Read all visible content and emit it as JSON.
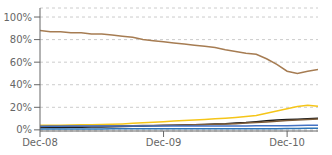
{
  "chart_data": {
    "type": "line",
    "x": [
      0,
      1,
      2,
      3,
      4,
      5,
      6,
      7,
      8,
      9,
      10,
      11,
      12,
      13,
      14,
      15,
      16,
      17,
      18,
      19,
      20,
      21,
      22,
      23,
      24,
      25,
      26,
      27
    ],
    "xlim": [
      0,
      27
    ],
    "xticks": [
      {
        "value": 0,
        "label": "Dec-08"
      },
      {
        "value": 12,
        "label": "Dec-09"
      },
      {
        "value": 24,
        "label": "Dec-10"
      }
    ],
    "ylim": [
      -0.01,
      1.08
    ],
    "yticks": [
      {
        "value": 0.0,
        "label": "0%"
      },
      {
        "value": 0.2,
        "label": "20%"
      },
      {
        "value": 0.4,
        "label": "40%"
      },
      {
        "value": 0.6,
        "label": "60%"
      },
      {
        "value": 0.8,
        "label": "80%"
      },
      {
        "value": 1.0,
        "label": "100%"
      }
    ],
    "grid": true,
    "series": [
      {
        "color": "#A67C52",
        "values": [
          0.88,
          0.87,
          0.87,
          0.86,
          0.86,
          0.85,
          0.85,
          0.84,
          0.83,
          0.82,
          0.8,
          0.79,
          0.78,
          0.77,
          0.76,
          0.75,
          0.74,
          0.73,
          0.71,
          0.695,
          0.68,
          0.67,
          0.63,
          0.58,
          0.52,
          0.5,
          0.52,
          0.535
        ]
      },
      {
        "color": "#F5C518",
        "values": [
          0.04,
          0.04,
          0.042,
          0.043,
          0.045,
          0.046,
          0.048,
          0.05,
          0.053,
          0.058,
          0.063,
          0.068,
          0.073,
          0.078,
          0.083,
          0.088,
          0.093,
          0.098,
          0.104,
          0.11,
          0.118,
          0.128,
          0.148,
          0.168,
          0.188,
          0.208,
          0.218,
          0.21
        ]
      },
      {
        "color": "#1A1A1A",
        "values": [
          0.02,
          0.021,
          0.022,
          0.023,
          0.024,
          0.025,
          0.026,
          0.027,
          0.029,
          0.031,
          0.033,
          0.036,
          0.039,
          0.042,
          0.044,
          0.046,
          0.048,
          0.051,
          0.054,
          0.06,
          0.065,
          0.073,
          0.08,
          0.088,
          0.093,
          0.095,
          0.098,
          0.102
        ]
      },
      {
        "color": "#7B5B3A",
        "values": [
          0.03,
          0.031,
          0.032,
          0.032,
          0.033,
          0.033,
          0.034,
          0.035,
          0.036,
          0.037,
          0.038,
          0.039,
          0.04,
          0.041,
          0.043,
          0.045,
          0.047,
          0.049,
          0.051,
          0.055,
          0.06,
          0.065,
          0.07,
          0.077,
          0.083,
          0.087,
          0.092,
          0.096
        ]
      },
      {
        "color": "#4472C4",
        "values": [
          0.033,
          0.033,
          0.033,
          0.034,
          0.034,
          0.034,
          0.034,
          0.034,
          0.035,
          0.035,
          0.035,
          0.035,
          0.035,
          0.035,
          0.035,
          0.035,
          0.035,
          0.035,
          0.035,
          0.035,
          0.035,
          0.036,
          0.036,
          0.036,
          0.037,
          0.038,
          0.04,
          0.042
        ]
      },
      {
        "color": "#2E75B6",
        "values": [
          0.008,
          0.008,
          0.008,
          0.008,
          0.008,
          0.008,
          0.008,
          0.009,
          0.009,
          0.009,
          0.009,
          0.009,
          0.009,
          0.009,
          0.01,
          0.01,
          0.01,
          0.01,
          0.01,
          0.01,
          0.01,
          0.011,
          0.011,
          0.011,
          0.012,
          0.013,
          0.014,
          0.015
        ]
      }
    ]
  }
}
